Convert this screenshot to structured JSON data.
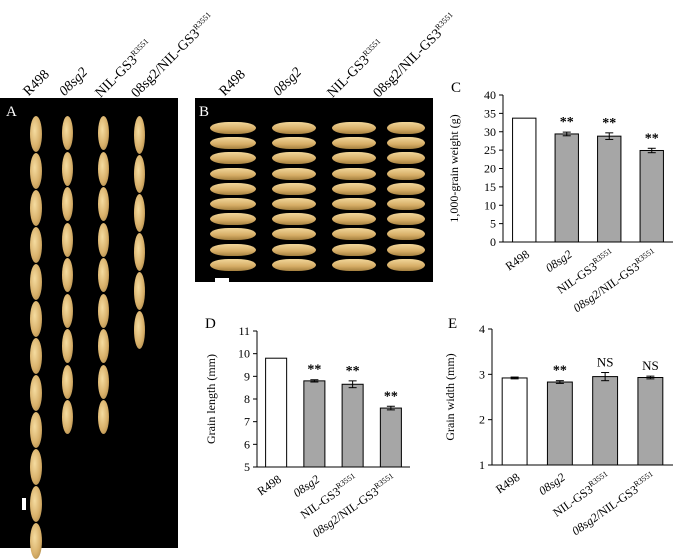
{
  "genotypes": [
    "R498",
    "08sg2",
    "NIL-GS3",
    "08sg2/NIL-GS3"
  ],
  "genotype_superscript": "R3551",
  "panels": {
    "a": {
      "letter": "A"
    },
    "b": {
      "letter": "B"
    },
    "c": {
      "letter": "C"
    },
    "d": {
      "letter": "D"
    },
    "e": {
      "letter": "E"
    }
  },
  "chart_data": [
    {
      "id": "C",
      "type": "bar",
      "categories": [
        "R498",
        "08sg2",
        "NIL-GS3R3551",
        "08sg2/NIL-GS3R3551"
      ],
      "values": [
        33.7,
        29.4,
        28.8,
        24.9
      ],
      "errors": [
        0,
        0.5,
        0.9,
        0.6
      ],
      "significance": [
        "",
        "**",
        "**",
        "**"
      ],
      "ylabel": "1,000-grain weight (g)",
      "ylim": [
        0,
        40
      ],
      "yticks": [
        0,
        5,
        10,
        15,
        20,
        25,
        30,
        35,
        40
      ],
      "bar_colors": [
        "#ffffff",
        "#a6a6a6",
        "#a6a6a6",
        "#a6a6a6"
      ]
    },
    {
      "id": "D",
      "type": "bar",
      "categories": [
        "R498",
        "08sg2",
        "NIL-GS3R3551",
        "08sg2/NIL-GS3R3551"
      ],
      "values": [
        9.8,
        8.8,
        8.65,
        7.6
      ],
      "errors": [
        0,
        0.05,
        0.15,
        0.08
      ],
      "significance": [
        "",
        "**",
        "**",
        "**"
      ],
      "ylabel": "Grain length (mm)",
      "ylim": [
        5,
        11
      ],
      "yticks": [
        5,
        6,
        7,
        8,
        9,
        10,
        11
      ],
      "bar_colors": [
        "#ffffff",
        "#a6a6a6",
        "#a6a6a6",
        "#a6a6a6"
      ]
    },
    {
      "id": "E",
      "type": "bar",
      "categories": [
        "R498",
        "08sg2",
        "NIL-GS3R3551",
        "08sg2/NIL-GS3R3551"
      ],
      "values": [
        2.92,
        2.83,
        2.95,
        2.93
      ],
      "errors": [
        0.02,
        0.03,
        0.09,
        0.03
      ],
      "significance": [
        "",
        "**",
        "NS",
        "NS"
      ],
      "ylabel": "Grain width (mm)",
      "ylim": [
        1,
        4
      ],
      "yticks": [
        1,
        2,
        3,
        4
      ],
      "bar_colors": [
        "#ffffff",
        "#a6a6a6",
        "#a6a6a6",
        "#a6a6a6"
      ]
    }
  ]
}
